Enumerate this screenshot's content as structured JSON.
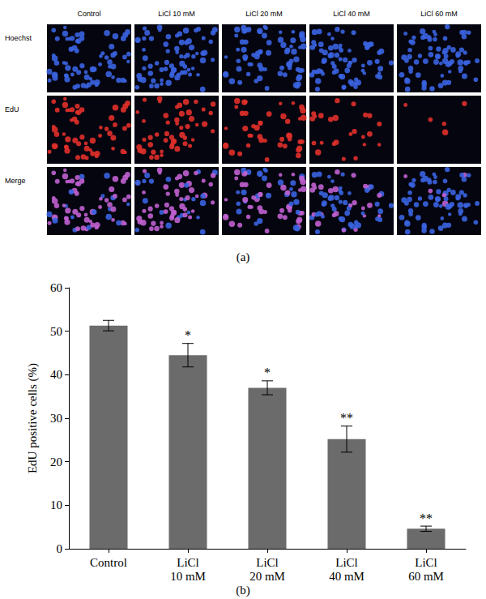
{
  "figure": {
    "label": "(a)",
    "columns": [
      "Control",
      "LiCl 10 mM",
      "LiCl 20 mM",
      "LiCl 40 mM",
      "LiCl 60 mM"
    ],
    "rows": [
      "Hoechst",
      "EdU",
      "Merge"
    ]
  },
  "chart_data": {
    "type": "bar",
    "caption": "(b)",
    "categories": [
      "Control",
      "LiCl 10 mM",
      "LiCl 20 mM",
      "LiCl 40 mM",
      "LiCl 60 mM"
    ],
    "values": [
      51.3,
      44.5,
      37.0,
      25.2,
      4.6
    ],
    "errors": [
      1.2,
      2.7,
      1.6,
      3.0,
      0.6
    ],
    "annotations": [
      null,
      "*",
      "*",
      "**",
      "**"
    ],
    "y_label": "EdU positive cells (%)",
    "color": "#6b6b6b",
    "ylim": [
      0,
      60
    ],
    "yticks": [
      0,
      10,
      20,
      30,
      40,
      50,
      60
    ],
    "grid": false
  }
}
